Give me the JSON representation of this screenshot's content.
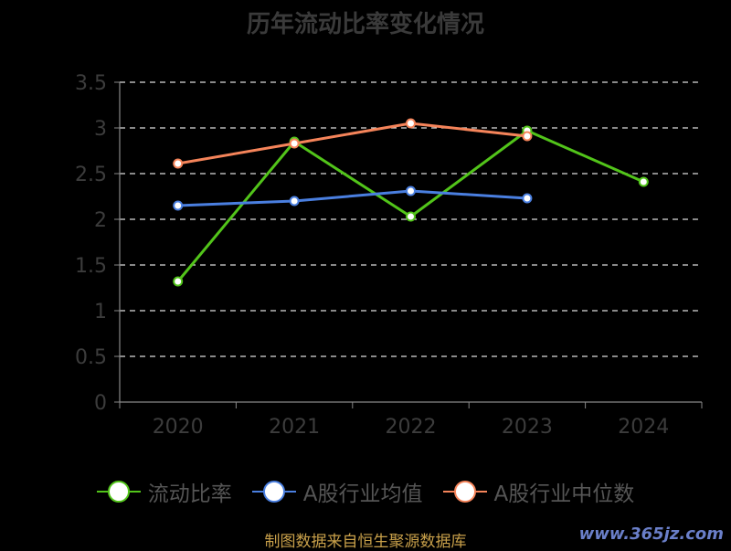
{
  "chart_data": {
    "type": "line",
    "title": "历年流动比率变化情况",
    "categories": [
      "2020",
      "2021",
      "2022",
      "2023",
      "2024"
    ],
    "ylim": [
      0,
      3.5
    ],
    "y_ticks": [
      "0",
      "0.5",
      "1",
      "1.5",
      "2",
      "2.5",
      "3",
      "3.5"
    ],
    "grid": true,
    "legend_position": "bottom",
    "series": [
      {
        "name": "流动比率",
        "color": "#52c41a",
        "values": [
          1.32,
          2.85,
          2.03,
          2.97,
          2.41
        ]
      },
      {
        "name": "A股行业均值",
        "color": "#4a7fe0",
        "values": [
          2.15,
          2.2,
          2.31,
          2.23,
          null
        ]
      },
      {
        "name": "A股行业中位数",
        "color": "#f5845a",
        "values": [
          2.61,
          2.83,
          3.05,
          2.91,
          null
        ]
      }
    ]
  },
  "footer": {
    "source": "制图数据来自恒生聚源数据库",
    "watermark": "www.365jz.com"
  }
}
